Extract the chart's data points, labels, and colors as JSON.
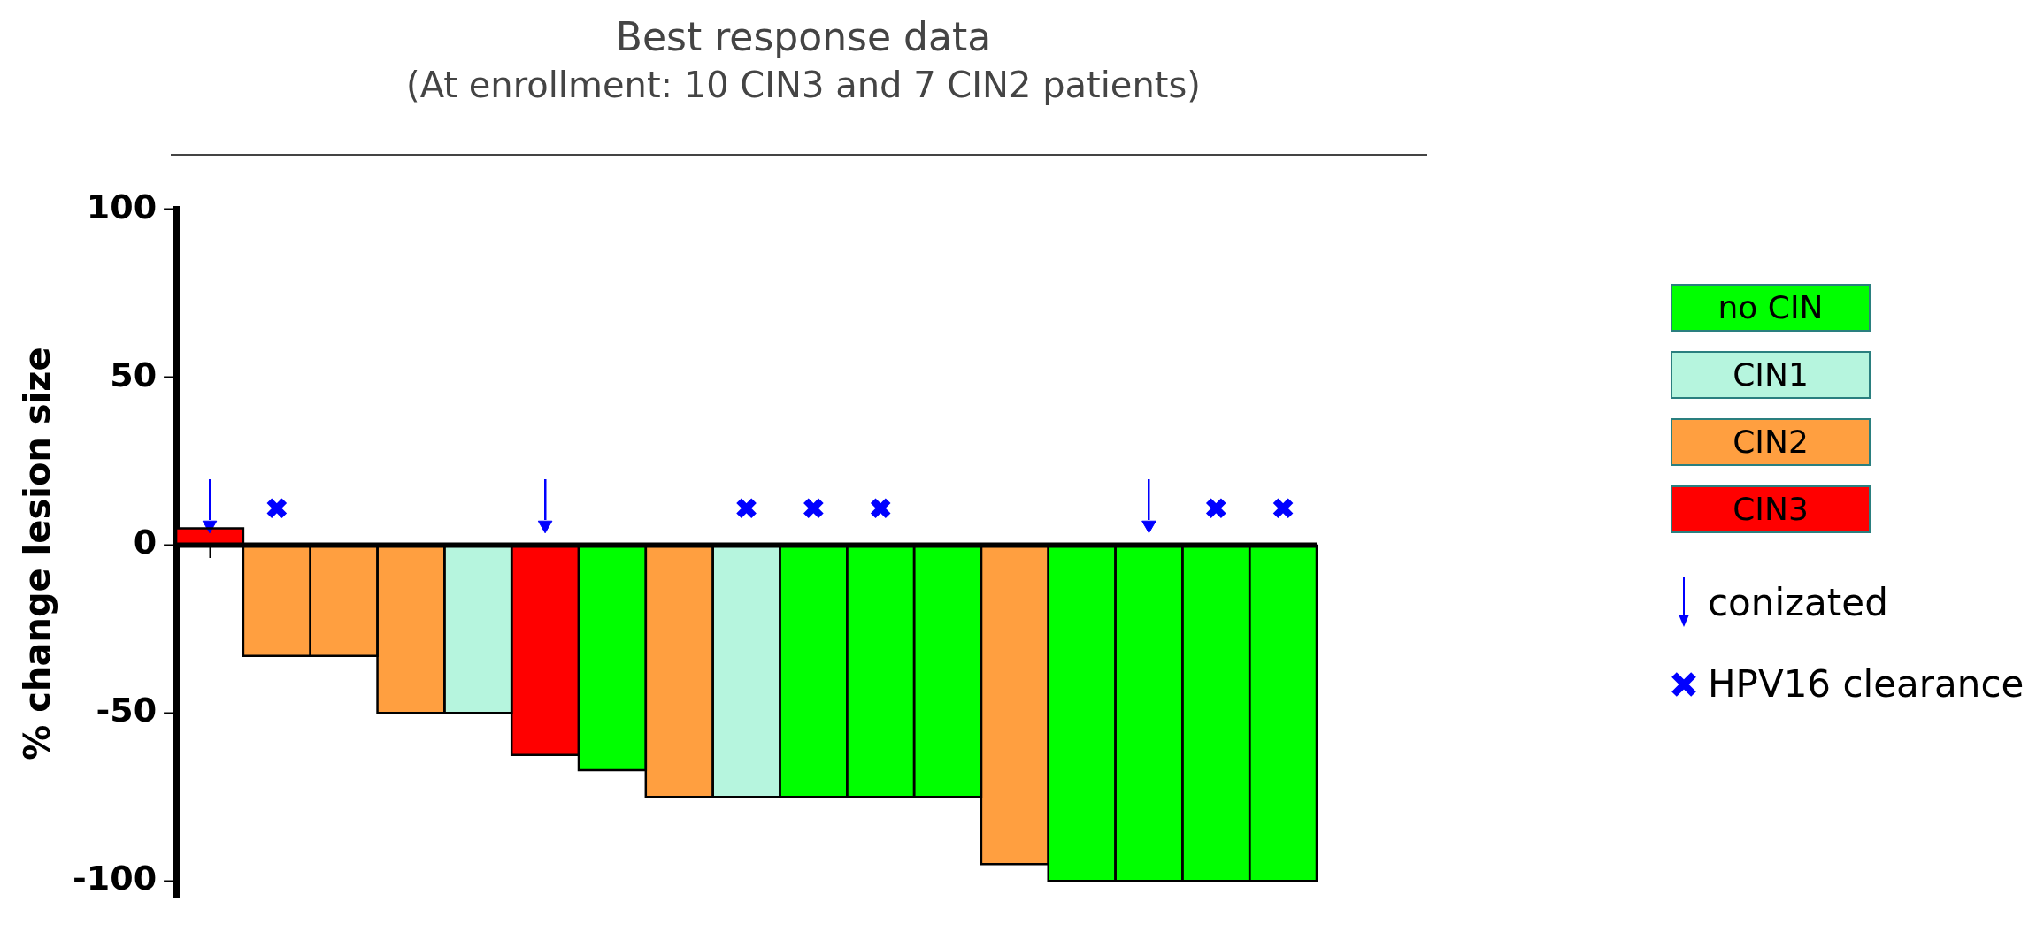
{
  "chart_data": {
    "type": "bar",
    "title": "Best response data",
    "subtitle": "(At enrollment: 10 CIN3 and 7 CIN2 patients)",
    "ylabel": "% change lesion size",
    "categories": [
      null,
      null,
      null,
      null,
      null,
      null,
      null,
      null,
      null,
      null,
      null,
      null,
      null,
      null,
      null,
      null,
      null
    ],
    "stacked": true,
    "ylim": [
      -105,
      100
    ],
    "yticks": [
      -100,
      -50,
      0,
      50,
      100
    ],
    "grid": false,
    "legend": "right",
    "ref_lines": [
      {
        "axis": "y",
        "value": 0,
        "color": "#000000"
      }
    ],
    "series": [
      {
        "name": "no CIN",
        "type": "bar",
        "color": "#00ff00",
        "values": [
          null,
          null,
          null,
          null,
          null,
          null,
          -67,
          null,
          null,
          -75,
          -75,
          -75,
          null,
          -100,
          -100,
          -100,
          -100
        ]
      },
      {
        "name": "CIN1",
        "type": "bar",
        "color": "#b6f5de",
        "values": [
          null,
          null,
          null,
          null,
          -50,
          null,
          null,
          null,
          -75,
          null,
          null,
          null,
          null,
          null,
          null,
          null,
          null
        ]
      },
      {
        "name": "CIN2",
        "type": "bar",
        "color": "#ff9f40",
        "values": [
          null,
          -33,
          -33,
          -50,
          null,
          null,
          null,
          -75,
          null,
          null,
          null,
          null,
          -95,
          null,
          null,
          null,
          null
        ]
      },
      {
        "name": "CIN3",
        "type": "bar",
        "color": "#ff0000",
        "values": [
          5,
          null,
          null,
          null,
          null,
          -62.5,
          null,
          null,
          null,
          null,
          null,
          null,
          null,
          null,
          null,
          null,
          null
        ]
      },
      {
        "name": "conizated",
        "type": "scatter",
        "marker": "triangle",
        "color": "#0000ff",
        "values": [
          6,
          null,
          null,
          null,
          null,
          6,
          null,
          null,
          null,
          null,
          null,
          null,
          null,
          null,
          6,
          null,
          null
        ]
      },
      {
        "name": "HPV16 clearance",
        "type": "scatter",
        "marker": "cross",
        "color": "#0000ff",
        "values": [
          null,
          11,
          null,
          null,
          null,
          null,
          null,
          null,
          11,
          11,
          11,
          null,
          null,
          null,
          null,
          11,
          11
        ]
      }
    ]
  }
}
